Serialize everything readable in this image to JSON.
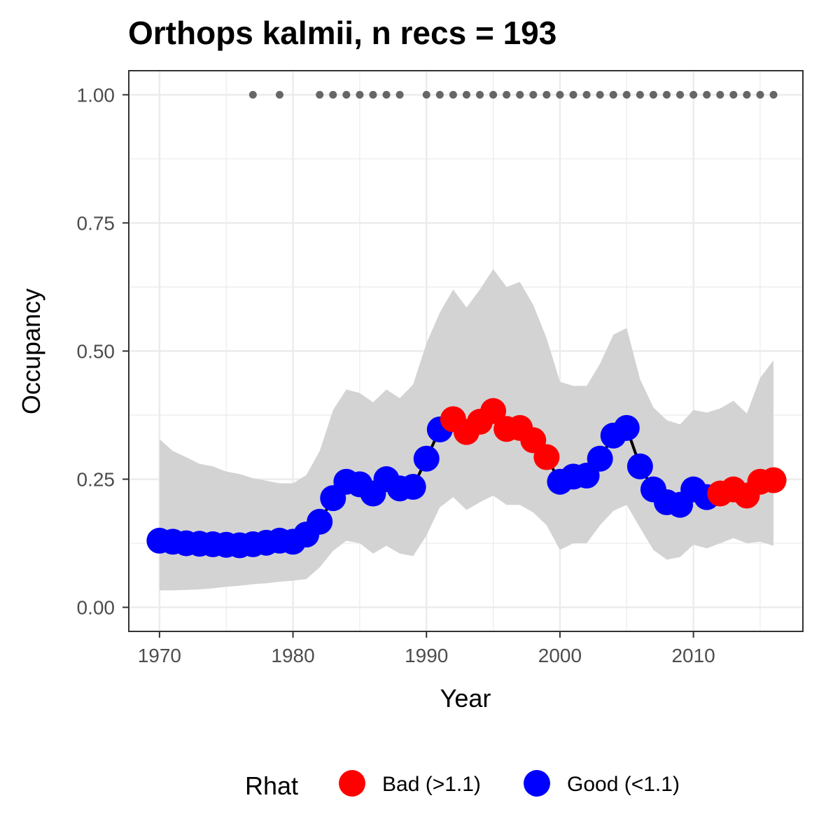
{
  "chart_data": {
    "type": "line",
    "title": "Orthops kalmii, n recs = 193",
    "xlabel": "Year",
    "ylabel": "Occupancy",
    "xlim": [
      1967.7,
      2018.2
    ],
    "ylim": [
      -0.047,
      1.047
    ],
    "x_ticks": [
      1970,
      1980,
      1990,
      2000,
      2010
    ],
    "x_tick_labels": [
      "1970",
      "1980",
      "1990",
      "2000",
      "2010"
    ],
    "y_ticks": [
      0,
      0.25,
      0.5,
      0.75,
      1.0
    ],
    "y_tick_labels": [
      "0.00",
      "0.25",
      "0.50",
      "0.75",
      "1.00"
    ],
    "grid": true,
    "legend": {
      "title": "Rhat",
      "position": "bottom",
      "entries": [
        {
          "label": "Bad (>1.1)",
          "color": "#ff0000"
        },
        {
          "label": "Good (<1.1)",
          "color": "#0000ff"
        }
      ]
    },
    "colors": {
      "bad": "#ff0000",
      "good": "#0000ff",
      "line": "#000000",
      "ribbon": "#d3d3d3",
      "record_dots": "#666666",
      "panel_border": "#333333",
      "grid": "#ebebeb"
    },
    "series": [
      {
        "name": "Occupancy",
        "x": [
          1970,
          1971,
          1972,
          1973,
          1974,
          1975,
          1976,
          1977,
          1978,
          1979,
          1980,
          1981,
          1982,
          1983,
          1984,
          1985,
          1986,
          1987,
          1988,
          1989,
          1990,
          1991,
          1992,
          1993,
          1994,
          1995,
          1996,
          1997,
          1998,
          1999,
          2000,
          2001,
          2002,
          2003,
          2004,
          2005,
          2006,
          2007,
          2008,
          2009,
          2010,
          2011,
          2012,
          2013,
          2014,
          2015,
          2016
        ],
        "y": [
          0.13,
          0.128,
          0.125,
          0.124,
          0.123,
          0.122,
          0.121,
          0.123,
          0.126,
          0.13,
          0.128,
          0.142,
          0.167,
          0.213,
          0.245,
          0.24,
          0.222,
          0.25,
          0.232,
          0.235,
          0.29,
          0.347,
          0.367,
          0.342,
          0.362,
          0.383,
          0.348,
          0.35,
          0.326,
          0.293,
          0.245,
          0.255,
          0.257,
          0.29,
          0.335,
          0.35,
          0.275,
          0.23,
          0.205,
          0.2,
          0.23,
          0.215,
          0.222,
          0.23,
          0.218,
          0.245,
          0.248
        ],
        "rhat": [
          "good",
          "good",
          "good",
          "good",
          "good",
          "good",
          "good",
          "good",
          "good",
          "good",
          "good",
          "good",
          "good",
          "good",
          "good",
          "good",
          "good",
          "good",
          "good",
          "good",
          "good",
          "good",
          "bad",
          "bad",
          "bad",
          "bad",
          "bad",
          "bad",
          "bad",
          "bad",
          "good",
          "good",
          "good",
          "good",
          "good",
          "good",
          "good",
          "good",
          "good",
          "good",
          "good",
          "good",
          "bad",
          "bad",
          "bad",
          "bad",
          "bad"
        ],
        "lower": [
          0.033,
          0.033,
          0.034,
          0.035,
          0.037,
          0.04,
          0.042,
          0.045,
          0.047,
          0.05,
          0.052,
          0.055,
          0.078,
          0.11,
          0.13,
          0.125,
          0.105,
          0.12,
          0.105,
          0.1,
          0.14,
          0.195,
          0.215,
          0.19,
          0.205,
          0.218,
          0.2,
          0.2,
          0.185,
          0.16,
          0.112,
          0.125,
          0.125,
          0.16,
          0.188,
          0.2,
          0.155,
          0.112,
          0.093,
          0.098,
          0.122,
          0.115,
          0.125,
          0.135,
          0.125,
          0.128,
          0.12
        ],
        "upper": [
          0.328,
          0.305,
          0.293,
          0.28,
          0.275,
          0.265,
          0.26,
          0.252,
          0.247,
          0.242,
          0.242,
          0.258,
          0.305,
          0.385,
          0.425,
          0.418,
          0.4,
          0.425,
          0.408,
          0.435,
          0.515,
          0.575,
          0.62,
          0.585,
          0.62,
          0.66,
          0.625,
          0.635,
          0.59,
          0.525,
          0.44,
          0.432,
          0.432,
          0.475,
          0.532,
          0.545,
          0.445,
          0.39,
          0.365,
          0.357,
          0.385,
          0.38,
          0.388,
          0.403,
          0.378,
          0.448,
          0.482
        ]
      },
      {
        "name": "Records",
        "type": "scatter",
        "x": [
          1977,
          1979,
          1982,
          1983,
          1984,
          1985,
          1986,
          1987,
          1988,
          1990,
          1991,
          1992,
          1993,
          1994,
          1995,
          1996,
          1997,
          1998,
          1999,
          2000,
          2001,
          2002,
          2003,
          2004,
          2005,
          2006,
          2007,
          2008,
          2009,
          2010,
          2011,
          2012,
          2013,
          2014,
          2015,
          2016
        ],
        "y": [
          1,
          1,
          1,
          1,
          1,
          1,
          1,
          1,
          1,
          1,
          1,
          1,
          1,
          1,
          1,
          1,
          1,
          1,
          1,
          1,
          1,
          1,
          1,
          1,
          1,
          1,
          1,
          1,
          1,
          1,
          1,
          1,
          1,
          1,
          1,
          1
        ]
      }
    ]
  }
}
